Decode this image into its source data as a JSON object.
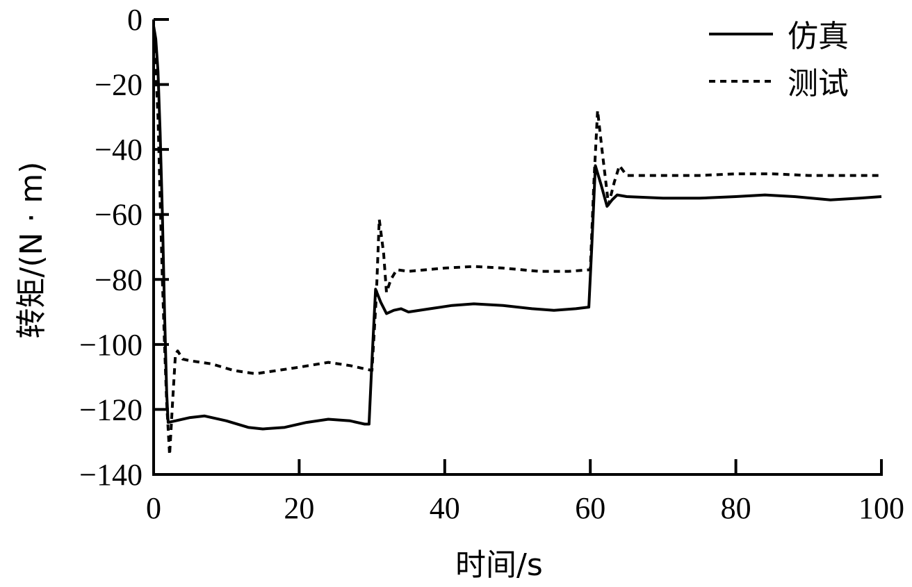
{
  "chart_data": {
    "type": "line",
    "title": "",
    "xlabel": "时间/s",
    "ylabel": "转矩/(N · m)",
    "xlim": [
      0,
      100
    ],
    "ylim": [
      -140,
      0
    ],
    "xticks": [
      0,
      20,
      40,
      60,
      80,
      100
    ],
    "yticks": [
      0,
      -20,
      -40,
      -60,
      -80,
      -100,
      -120,
      -140
    ],
    "xtick_labels": [
      "0",
      "20",
      "40",
      "60",
      "80",
      "100"
    ],
    "ytick_labels": [
      "0",
      "−20",
      "−40",
      "−60",
      "−80",
      "−100",
      "−120",
      "−140"
    ],
    "grid": false,
    "legend_position": "upper right",
    "series": [
      {
        "name": "仿真",
        "style": "solid",
        "color": "#000000",
        "x": [
          0.0,
          0.3,
          0.6,
          0.9,
          1.2,
          1.5,
          1.8,
          2.0,
          3.0,
          5.0,
          7.0,
          10.0,
          13.0,
          15.0,
          18.0,
          21.0,
          24.0,
          27.0,
          29.0,
          29.6,
          30.0,
          30.5,
          31.2,
          32.0,
          33.0,
          34.0,
          35.0,
          38.0,
          41.0,
          44.0,
          48.0,
          52.0,
          55.0,
          58.0,
          59.8,
          60.2,
          60.7,
          61.5,
          62.3,
          63.0,
          63.7,
          65.0,
          70.0,
          75.0,
          80.0,
          84.0,
          88.0,
          93.0,
          97.0,
          100.0
        ],
        "y": [
          -2,
          -6,
          -16,
          -35,
          -60,
          -90,
          -115,
          -124,
          -123.5,
          -122.5,
          -122,
          -123.5,
          -125.5,
          -126,
          -125.5,
          -124,
          -123,
          -123.5,
          -124.5,
          -124.5,
          -105,
          -83,
          -87,
          -90.5,
          -89.5,
          -89,
          -90,
          -89,
          -88,
          -87.5,
          -88,
          -89,
          -89.5,
          -89,
          -88.5,
          -70,
          -45,
          -51,
          -57.5,
          -55.5,
          -54,
          -54.5,
          -55,
          -55,
          -54.5,
          -54,
          -54.5,
          -55.5,
          -55,
          -54.5
        ]
      },
      {
        "name": "测试",
        "style": "dashed",
        "color": "#000000",
        "x": [
          0.0,
          0.3,
          0.6,
          0.9,
          1.2,
          1.5,
          1.8,
          2.2,
          2.6,
          3.0,
          3.3,
          4.0,
          5.0,
          8.0,
          11.0,
          14.0,
          17.0,
          20.0,
          24.0,
          27.0,
          30.0,
          30.6,
          31.0,
          31.6,
          32.0,
          32.6,
          33.4,
          35.0,
          40.0,
          44.0,
          48.0,
          53.0,
          57.0,
          60.0,
          60.5,
          61.0,
          61.6,
          62.5,
          63.3,
          64.0,
          65.0,
          70.0,
          75.0,
          80.0,
          85.0,
          90.0,
          95.0,
          100.0
        ],
        "y": [
          -5,
          -15,
          -30,
          -55,
          -80,
          -100,
          -118,
          -134,
          -118,
          -103,
          -102,
          -104.5,
          -105,
          -106,
          -108,
          -109,
          -108,
          -107,
          -105.5,
          -106.5,
          -108,
          -85,
          -61.5,
          -72,
          -84,
          -80,
          -77,
          -77.5,
          -76.5,
          -76,
          -76.5,
          -77.5,
          -77.5,
          -77,
          -50,
          -28,
          -40,
          -57,
          -50,
          -45,
          -48,
          -48,
          -48,
          -47.5,
          -47.5,
          -48,
          -48,
          -48
        ]
      }
    ]
  },
  "axes": {
    "xlabel": "时间/s",
    "ylabel": "转矩/(N · m)"
  },
  "legend": {
    "items": [
      {
        "label": "仿真",
        "style": "solid"
      },
      {
        "label": "测试",
        "style": "dashed"
      }
    ]
  }
}
